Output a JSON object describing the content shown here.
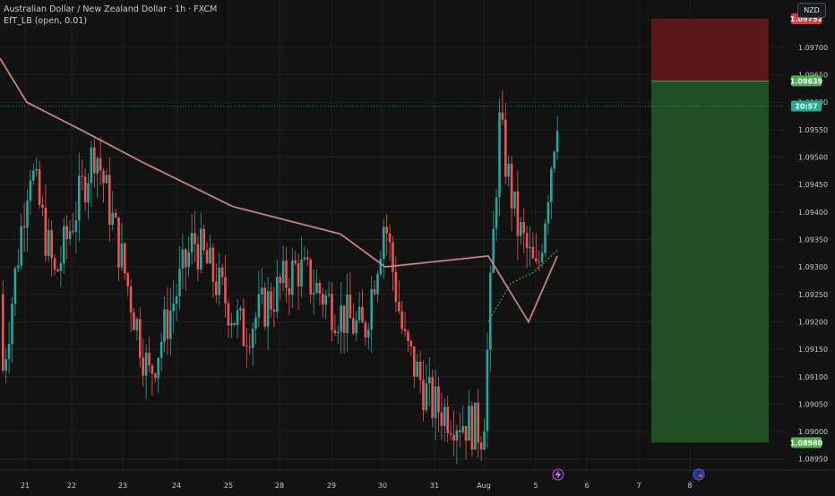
{
  "legend": {
    "symbol_line": "Australian Dollar / New Zealand Dollar · 1h · FXCM",
    "indicator_line": "EfT_LB (open, 0.01)"
  },
  "currency_button": "NZD",
  "price_tags": {
    "stop": {
      "label": "1.09752",
      "value": 1.09752,
      "color": "#e0393e"
    },
    "entry": {
      "label": "1.09639",
      "value": 1.09639,
      "color": "#4caf50"
    },
    "countdown": {
      "label": "20:57",
      "value": 1.09593,
      "color": "#22ab94"
    },
    "target": {
      "label": "1.08980",
      "value": 1.0898,
      "color": "#4caf50"
    }
  },
  "colors": {
    "up": "#26a69a",
    "down": "#ef5350",
    "profit_zone": "#1f4d24",
    "loss_zone": "#5a1818",
    "ma": "#a8a8a8"
  },
  "icons": [
    "lightning-icon",
    "flag-au-icon"
  ],
  "chart_data": {
    "type": "candlestick",
    "title": "Australian Dollar / New Zealand Dollar · 1h · FXCM",
    "y_ticks": [
      "1.09700",
      "1.09650",
      "1.09600",
      "1.09550",
      "1.09500",
      "1.09450",
      "1.09400",
      "1.09350",
      "1.09300",
      "1.09250",
      "1.09200",
      "1.09150",
      "1.09100",
      "1.09050",
      "1.09000",
      "1.08950"
    ],
    "y_range": [
      1.0893,
      1.0977
    ],
    "x_ticks": [
      "21",
      "22",
      "23",
      "24",
      "25",
      "28",
      "29",
      "30",
      "31",
      "Aug",
      "5",
      "6",
      "7",
      "8"
    ],
    "ohlc_key_points": [
      {
        "date": "21",
        "close": 1.0915
      },
      {
        "date": "21",
        "close": 1.0949
      },
      {
        "date": "22",
        "close": 1.0928
      },
      {
        "date": "22",
        "close": 1.0952
      },
      {
        "date": "23",
        "close": 1.091
      },
      {
        "date": "23",
        "close": 1.0935
      },
      {
        "date": "24",
        "close": 1.0918
      },
      {
        "date": "25",
        "close": 1.093
      },
      {
        "date": "28",
        "close": 1.0922
      },
      {
        "date": "29",
        "close": 1.0918
      },
      {
        "date": "30",
        "close": 1.0939
      },
      {
        "date": "30",
        "close": 1.0916
      },
      {
        "date": "31",
        "close": 1.0905
      },
      {
        "date": "31",
        "close": 1.09
      },
      {
        "date": "Aug",
        "close": 1.0956
      },
      {
        "date": "Aug",
        "close": 1.0938
      },
      {
        "date": "4",
        "close": 1.0928
      },
      {
        "date": "4",
        "close": 1.096
      }
    ],
    "moving_average_key_points": [
      1.0968,
      1.096,
      1.0955,
      1.0949,
      1.0941,
      1.0936,
      1.093,
      1.0932,
      1.092,
      1.0932
    ],
    "position": {
      "stop": 1.09752,
      "entry": 1.09639,
      "target": 1.0898
    }
  }
}
